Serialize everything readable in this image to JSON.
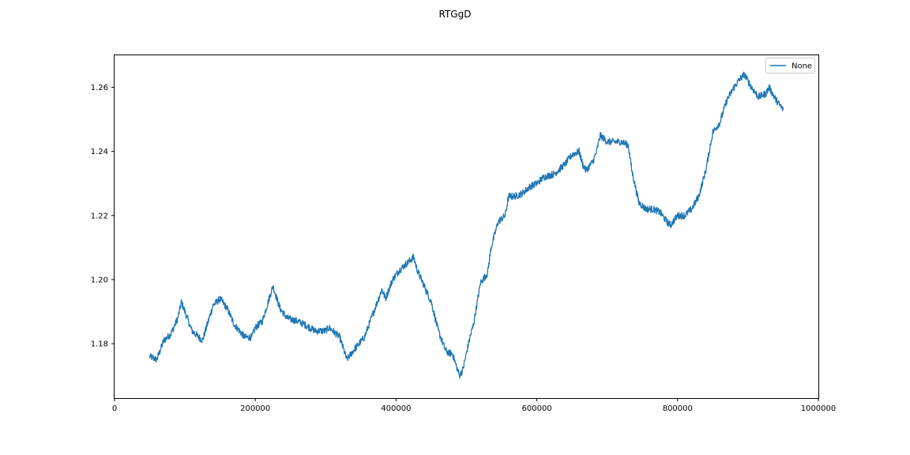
{
  "chart_data": {
    "type": "line",
    "title": "RTGgD",
    "xlabel": "",
    "ylabel": "",
    "xlim": [
      0,
      1000000
    ],
    "ylim": [
      1.163,
      1.27
    ],
    "x_ticks": [
      0,
      200000,
      400000,
      600000,
      800000,
      1000000
    ],
    "x_tick_labels": [
      "0",
      "200000",
      "400000",
      "600000",
      "800000",
      "1000000"
    ],
    "y_ticks": [
      1.18,
      1.2,
      1.22,
      1.24,
      1.26
    ],
    "y_tick_labels": [
      "1.18",
      "1.20",
      "1.22",
      "1.24",
      "1.26"
    ],
    "grid": false,
    "legend": {
      "placement": "upper right",
      "entries": [
        "None"
      ]
    },
    "series": [
      {
        "name": "None",
        "color": "#1f77b4",
        "x": [
          50000,
          60000,
          70000,
          80000,
          90000,
          95000,
          105000,
          110000,
          125000,
          140000,
          150000,
          160000,
          170000,
          185000,
          195000,
          200000,
          210000,
          225000,
          235000,
          245000,
          260000,
          270000,
          285000,
          300000,
          305000,
          315000,
          320000,
          330000,
          340000,
          355000,
          370000,
          380000,
          385000,
          395000,
          405000,
          415000,
          425000,
          430000,
          440000,
          450000,
          460000,
          470000,
          475000,
          480000,
          490000,
          495000,
          505000,
          510000,
          520000,
          530000,
          535000,
          545000,
          555000,
          560000,
          570000,
          580000,
          590000,
          600000,
          610000,
          625000,
          640000,
          650000,
          660000,
          665000,
          670000,
          680000,
          685000,
          690000,
          700000,
          720000,
          730000,
          735000,
          745000,
          755000,
          765000,
          775000,
          785000,
          790000,
          800000,
          810000,
          820000,
          830000,
          840000,
          845000,
          850000,
          860000,
          870000,
          880000,
          890000,
          895000,
          905000,
          915000,
          925000,
          930000,
          940000,
          950000
        ],
        "y": [
          1.176,
          1.175,
          1.181,
          1.183,
          1.188,
          1.193,
          1.187,
          1.184,
          1.181,
          1.192,
          1.194,
          1.191,
          1.186,
          1.182,
          1.182,
          1.185,
          1.187,
          1.198,
          1.191,
          1.188,
          1.187,
          1.186,
          1.184,
          1.184,
          1.185,
          1.183,
          1.182,
          1.175,
          1.178,
          1.182,
          1.191,
          1.197,
          1.194,
          1.2,
          1.203,
          1.205,
          1.207,
          1.203,
          1.198,
          1.193,
          1.184,
          1.178,
          1.177,
          1.177,
          1.17,
          1.172,
          1.182,
          1.186,
          1.199,
          1.202,
          1.21,
          1.218,
          1.22,
          1.226,
          1.226,
          1.227,
          1.229,
          1.23,
          1.232,
          1.233,
          1.236,
          1.239,
          1.24,
          1.236,
          1.234,
          1.237,
          1.24,
          1.245,
          1.243,
          1.243,
          1.242,
          1.234,
          1.224,
          1.222,
          1.222,
          1.221,
          1.218,
          1.217,
          1.22,
          1.22,
          1.222,
          1.226,
          1.234,
          1.24,
          1.246,
          1.249,
          1.256,
          1.26,
          1.263,
          1.264,
          1.26,
          1.257,
          1.258,
          1.26,
          1.256,
          1.253
        ]
      }
    ]
  }
}
